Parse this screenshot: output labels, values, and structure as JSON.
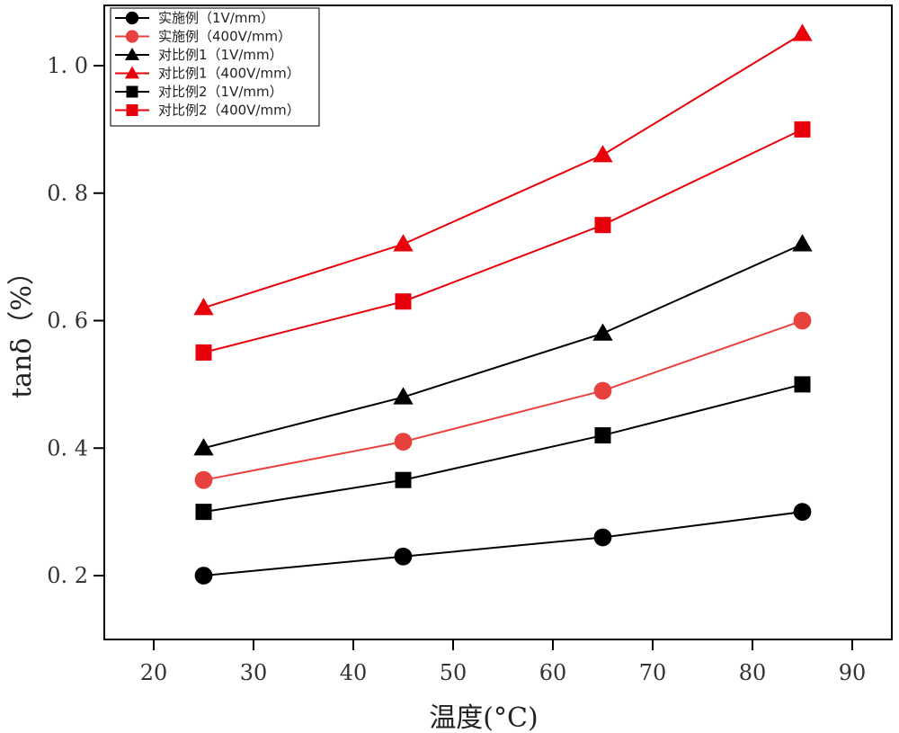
{
  "chart_data": {
    "type": "line",
    "title": "",
    "xlabel": "温度(°C)",
    "ylabel": "tanδ（%）",
    "xlim": [
      15,
      95
    ],
    "ylim": [
      0.1,
      1.08
    ],
    "xticks": [
      20,
      30,
      40,
      50,
      60,
      70,
      80,
      90
    ],
    "xtick_labels": [
      "20",
      "30",
      "40",
      "50",
      "60",
      "70",
      "80",
      "90"
    ],
    "yticks": [
      0.2,
      0.4,
      0.6,
      0.8,
      1.0
    ],
    "ytick_labels": [
      "0. 2",
      "0. 4",
      "0. 6",
      "0. 8",
      "1. 0"
    ],
    "grid": false,
    "legend_position": "top-left",
    "x": [
      25,
      45,
      65,
      85
    ],
    "series": [
      {
        "name": "实施例（1V/mm）",
        "marker": "circle",
        "color": "#000000",
        "values": [
          0.2,
          0.23,
          0.26,
          0.3
        ]
      },
      {
        "name": "实施例（400V/mm）",
        "marker": "circle",
        "color": "#e8423f",
        "values": [
          0.35,
          0.41,
          0.49,
          0.6
        ]
      },
      {
        "name": "对比例1（1V/mm）",
        "marker": "triangle",
        "color": "#000000",
        "values": [
          0.4,
          0.48,
          0.58,
          0.72
        ]
      },
      {
        "name": "对比例1（400V/mm）",
        "marker": "triangle",
        "color": "#e8000b",
        "values": [
          0.62,
          0.72,
          0.86,
          1.05
        ]
      },
      {
        "name": "对比例2（1V/mm）",
        "marker": "square",
        "color": "#000000",
        "values": [
          0.3,
          0.35,
          0.42,
          0.5
        ]
      },
      {
        "name": "对比例2（400V/mm）",
        "marker": "square",
        "color": "#e8000b",
        "values": [
          0.55,
          0.63,
          0.75,
          0.9
        ]
      }
    ]
  }
}
